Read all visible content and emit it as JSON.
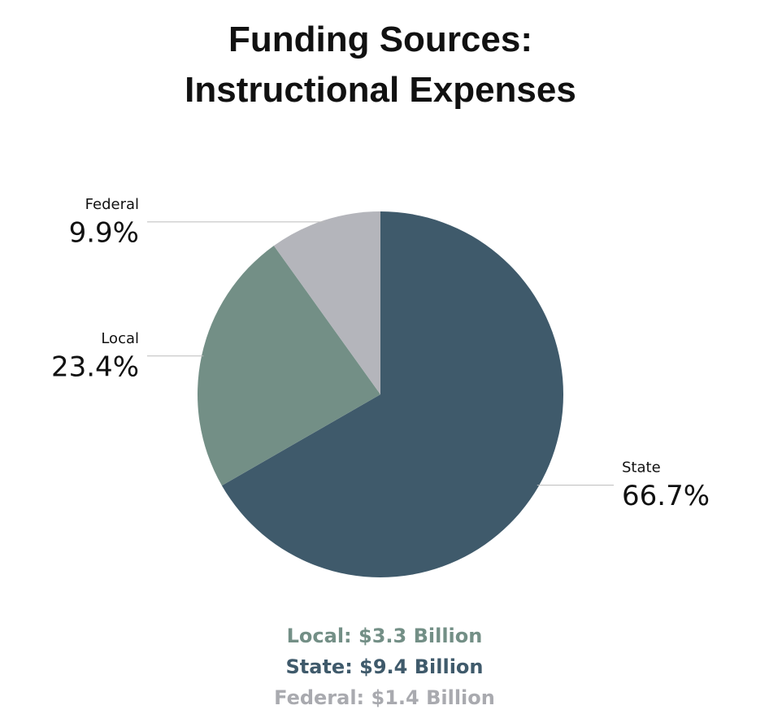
{
  "chart_data": {
    "type": "pie",
    "title": "Funding Sources: Instructional Expenses",
    "categories": [
      "State",
      "Local",
      "Federal"
    ],
    "values": [
      66.7,
      23.4,
      9.9
    ],
    "value_labels": [
      "66.7%",
      "23.4%",
      "9.9%"
    ],
    "colors": [
      "#3f5a6b",
      "#738f86",
      "#b4b5bb"
    ],
    "notes": [
      {
        "text": "Local: $3.3 Billion",
        "color": "#738f86"
      },
      {
        "text": "State: $9.4 Billion",
        "color": "#3f5a6b"
      },
      {
        "text": "Federal: $1.4 Billion",
        "color": "#a9aaaf"
      }
    ]
  }
}
